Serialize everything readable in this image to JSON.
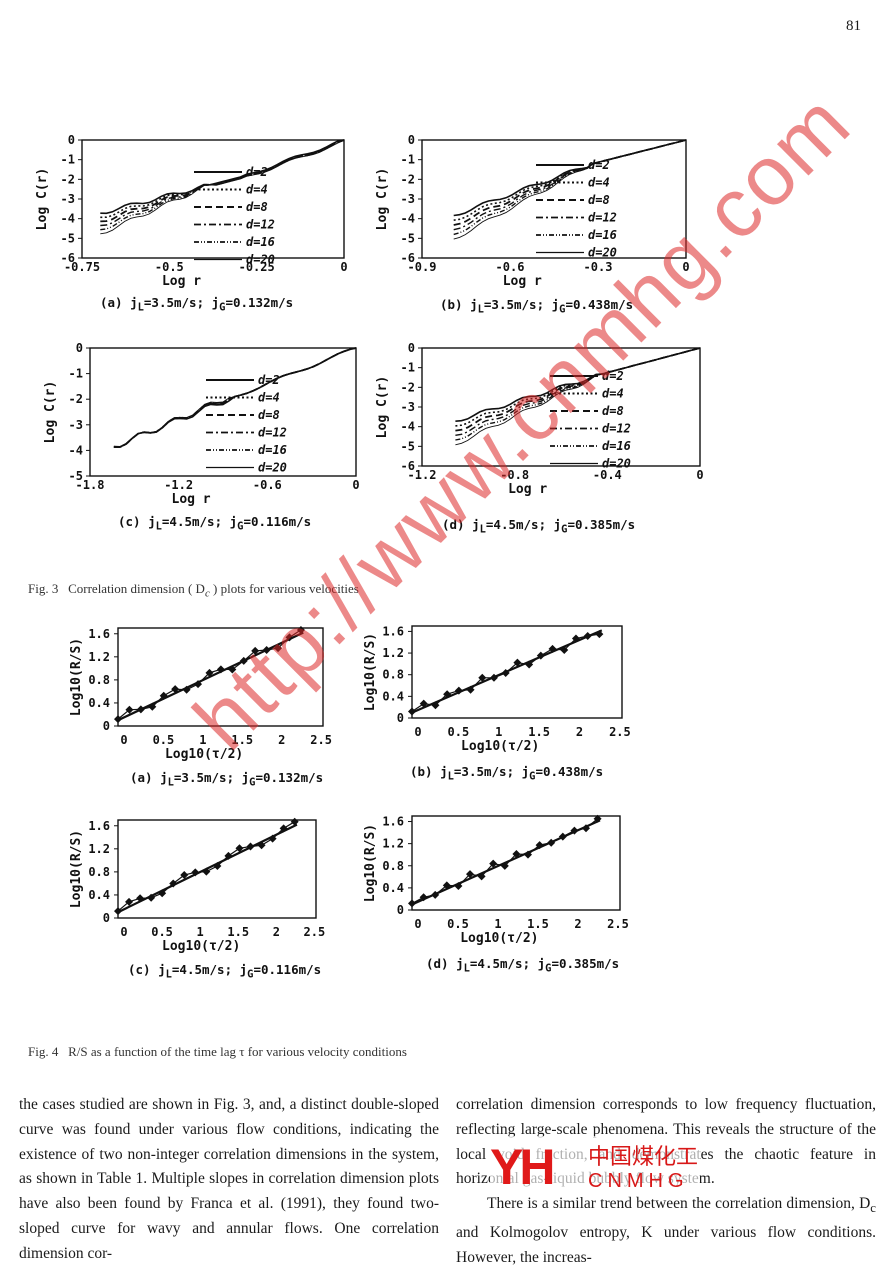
{
  "page_number": "81",
  "fig3": {
    "caption_label": "Fig. 3",
    "caption_text": "Correlation dimension ( D",
    "caption_sub": "c",
    "caption_tail": " ) plots for various velocities",
    "legend": [
      "d=2",
      "d=4",
      "d=8",
      "d=12",
      "d=16",
      "d=20"
    ],
    "ylabel": "Log C(r)",
    "xlabel": "Log r",
    "panels": [
      {
        "sub": "(a) j",
        "subL": "L",
        "mid": "=3.5m/s; j",
        "subG": "G",
        "end": "=0.132m/s",
        "yticks": [
          "0",
          "-1",
          "-2",
          "-3",
          "-4",
          "-5",
          "-6"
        ],
        "xticks": [
          "-0.75",
          "-0.5",
          "-0.25",
          "0"
        ]
      },
      {
        "sub": "(b) j",
        "subL": "L",
        "mid": "=3.5m/s; j",
        "subG": "G",
        "end": "=0.438m/s",
        "yticks": [
          "0",
          "-1",
          "-2",
          "-3",
          "-4",
          "-5",
          "-6"
        ],
        "xticks": [
          "-0.9",
          "-0.6",
          "-0.3",
          "0"
        ]
      },
      {
        "sub": "(c) j",
        "subL": "L",
        "mid": "=4.5m/s; j",
        "subG": "G",
        "end": "=0.116m/s",
        "yticks": [
          "0",
          "-1",
          "-2",
          "-3",
          "-4",
          "-5"
        ],
        "xticks": [
          "-1.8",
          "-1.2",
          "-0.6",
          "0"
        ]
      },
      {
        "sub": "(d) j",
        "subL": "L",
        "mid": "=4.5m/s; j",
        "subG": "G",
        "end": "=0.385m/s",
        "yticks": [
          "0",
          "-1",
          "-2",
          "-3",
          "-4",
          "-5",
          "-6"
        ],
        "xticks": [
          "-1.2",
          "-0.8",
          "-0.4",
          "0"
        ]
      }
    ]
  },
  "fig4": {
    "caption_label": "Fig. 4",
    "caption_text": "R/S as a function of the time lag τ for various velocity conditions",
    "ylabel": "Log10(R/S)",
    "xlabel": "Log10(τ/2)",
    "yticks": [
      "0",
      "0.4",
      "0.8",
      "1.2",
      "1.6"
    ],
    "xticks": [
      "0",
      "0.5",
      "1",
      "1.5",
      "2",
      "2.5"
    ],
    "panels": [
      {
        "sub": "(a) j",
        "subL": "L",
        "mid": "=3.5m/s; j",
        "subG": "G",
        "end": "=0.132m/s"
      },
      {
        "sub": "(b) j",
        "subL": "L",
        "mid": "=3.5m/s; j",
        "subG": "G",
        "end": "=0.438m/s"
      },
      {
        "sub": "(c) j",
        "subL": "L",
        "mid": "=4.5m/s; j",
        "subG": "G",
        "end": "=0.116m/s"
      },
      {
        "sub": "(d) j",
        "subL": "L",
        "mid": "=4.5m/s; j",
        "subG": "G",
        "end": "=0.385m/s"
      }
    ]
  },
  "col1": "the cases studied are shown in Fig. 3, and, a distinct double-sloped curve was found under various flow conditions, indicating the existence of two non-integer correlation dimensions in the system, as shown in Table 1. Multiple slopes in correlation dimension plots have also been found by Franca et al. (1991), they found two-sloped curve for wavy and annular flows. One correlation dimension cor-",
  "col2_p1": "correlation dimension corresponds to low frequency fluctuation, reflecting large-scale phenomena. This reveals the structure of the local void fraction, and demonstrates the chaotic feature in horizontal gas-liquid bubbly flow system.",
  "col2_p2": "There is a similar trend between the correlation dimension, D",
  "col2_p2_sub": "c",
  "col2_p2_tail": " and Kolmogolov entropy, K under various flow conditions. However, the increas-",
  "watermark": "http://www.cnmhg.com",
  "logo": {
    "mark": "YH",
    "cn": "中国煤化工",
    "en": "CNMHG"
  }
}
